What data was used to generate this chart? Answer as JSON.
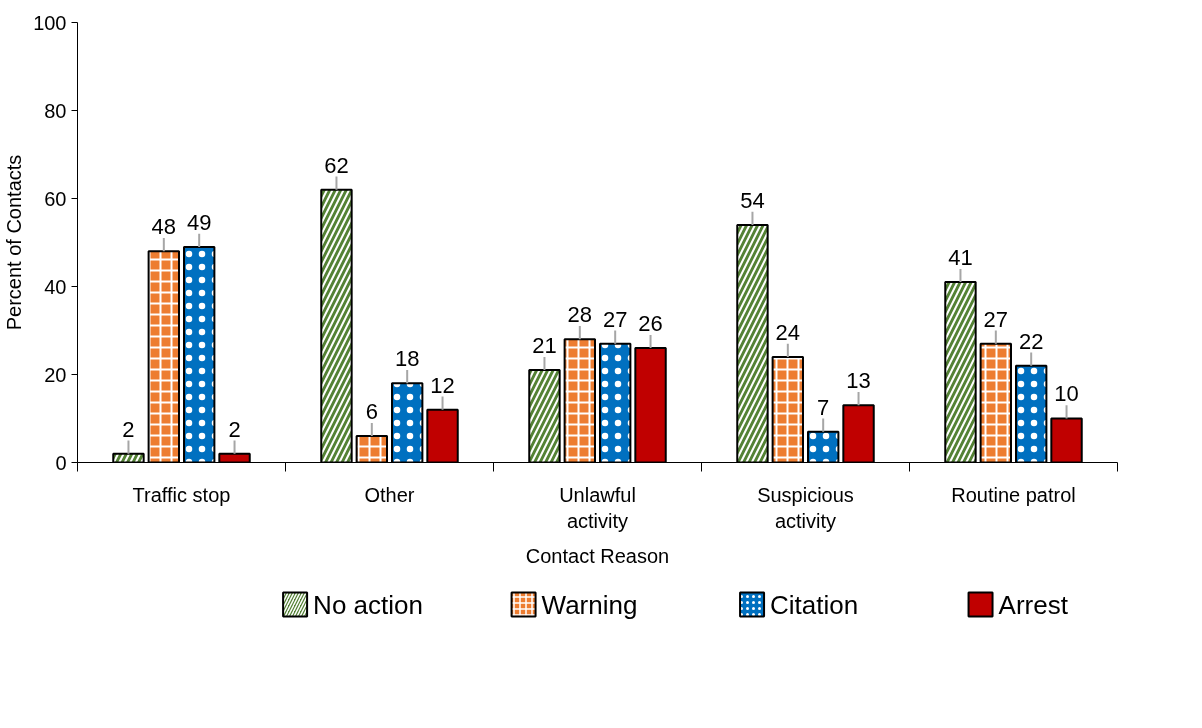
{
  "chart_data": {
    "type": "bar",
    "xlabel": "Contact Reason",
    "ylabel": "Percent of Contacts",
    "categories": [
      "Traffic stop",
      "Other",
      "Unlawful\nactivity",
      "Suspicious\nactivity",
      "Routine patrol"
    ],
    "series": [
      {
        "name": "No action",
        "color": "#548235",
        "values": [
          2,
          62,
          21,
          54,
          41
        ],
        "errors": [
          [
            2,
            5
          ],
          [
            62,
            65
          ],
          [
            21,
            24
          ],
          [
            54,
            57
          ],
          [
            41,
            44
          ]
        ]
      },
      {
        "name": "Warning",
        "color": "#ed7d31",
        "values": [
          48,
          6,
          28,
          24,
          27
        ],
        "errors": [
          [
            48,
            51
          ],
          [
            6,
            9
          ],
          [
            28,
            31
          ],
          [
            24,
            27
          ],
          [
            27,
            30
          ]
        ]
      },
      {
        "name": "Citation",
        "color": "#0070c0",
        "values": [
          49,
          18,
          27,
          7,
          22
        ],
        "errors": [
          [
            49,
            52
          ],
          [
            18,
            21
          ],
          [
            27,
            30
          ],
          [
            7,
            10
          ],
          [
            22,
            25
          ]
        ]
      },
      {
        "name": "Arrest",
        "color": "#c00000",
        "values": [
          2,
          12,
          26,
          13,
          10
        ],
        "errors": [
          [
            2,
            5
          ],
          [
            12,
            15
          ],
          [
            26,
            29
          ],
          [
            13,
            16
          ],
          [
            10,
            13
          ]
        ]
      }
    ],
    "ylim": [
      0,
      100
    ],
    "yticks": [
      0,
      20,
      40,
      60,
      80,
      100
    ],
    "grid": false,
    "legend": "bottom",
    "data_labels": true
  }
}
